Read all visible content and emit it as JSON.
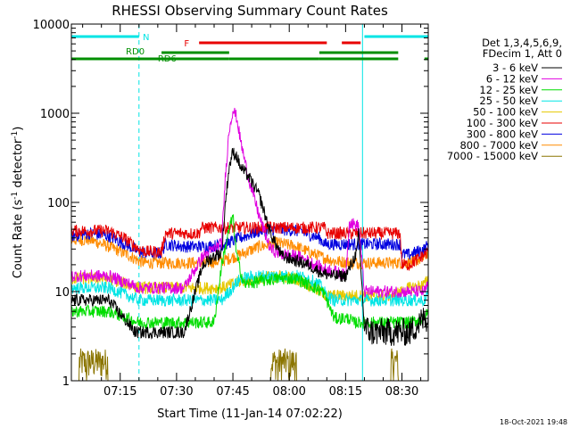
{
  "chart_data": {
    "type": "line",
    "title": "RHESSI Observing Summary Count Rates",
    "xlabel": "Start Time (11-Jan-14 07:02:22)",
    "ylabel": "Count Rate (s⁻¹ detector⁻¹)",
    "ylabel_main": "Count Rate (s",
    "ylabel_sup1": "-1",
    "ylabel_mid": " detector",
    "ylabel_sup2": "-1",
    "ylabel_end": ")",
    "yscale": "log",
    "ylim": [
      1,
      10000
    ],
    "xlim_minutes": [
      0,
      95
    ],
    "xtick_minutes": [
      13,
      28,
      43,
      58,
      73,
      88
    ],
    "xticks": [
      "07:15",
      "07:30",
      "07:45",
      "08:00",
      "08:15",
      "08:30"
    ],
    "ytick_values": [
      1,
      10,
      100,
      1000,
      10000
    ],
    "yticks": [
      "1",
      "10",
      "100",
      "1000",
      "10000"
    ],
    "legend_header": [
      "Det 1,3,4,5,6,9,",
      "FDecim 1, Att 0"
    ],
    "legend_position": "right",
    "footer": "18-Oct-2021 19:48",
    "flags": [
      {
        "label": "N",
        "color": "#00e5e5",
        "row": 1,
        "segments": [
          [
            0,
            18
          ],
          [
            78,
            95
          ]
        ]
      },
      {
        "label": "F",
        "color": "#e80000",
        "row": 2,
        "segments": [
          [
            34,
            68
          ],
          [
            72,
            77
          ]
        ]
      },
      {
        "label": "RD0",
        "color": "#008f00",
        "row": 3,
        "segments": [
          [
            24,
            42
          ],
          [
            66,
            87
          ]
        ]
      },
      {
        "label": "RD6",
        "color": "#008f00",
        "row": 4,
        "segments": [
          [
            0,
            42
          ],
          [
            42,
            66
          ],
          [
            66,
            87
          ],
          [
            94,
            95
          ]
        ]
      }
    ],
    "vlines": [
      {
        "x": 0,
        "style": "solid",
        "color": "#00e5e5"
      },
      {
        "x": 18,
        "style": "dashed",
        "color": "#00e5e5"
      },
      {
        "x": 77.5,
        "style": "solid",
        "color": "#00e5e5"
      },
      {
        "x": 95,
        "style": "dashed",
        "color": "#00e5e5"
      }
    ],
    "series": [
      {
        "name": "3 - 6 keV",
        "color": "#000000",
        "x": [
          0,
          10,
          17,
          20,
          30,
          35,
          38,
          40,
          41,
          42,
          43,
          44,
          45,
          47,
          50,
          53,
          56,
          60,
          63,
          67,
          70,
          73,
          74,
          76,
          76.5,
          78,
          80,
          85,
          90,
          94,
          95
        ],
        "y": [
          8,
          8,
          3.5,
          3.5,
          3.5,
          20,
          25,
          27,
          100,
          250,
          370,
          330,
          250,
          200,
          120,
          45,
          25,
          22,
          20,
          16,
          15,
          15,
          18,
          28,
          45,
          4,
          3.5,
          3.5,
          3.5,
          5,
          5
        ]
      },
      {
        "name": "6 - 12 keV",
        "color": "#e000e0",
        "x": [
          0,
          10,
          18,
          20,
          30,
          35,
          38,
          40,
          41,
          42,
          43,
          44,
          45,
          47,
          50,
          53,
          56,
          60,
          63,
          67,
          70,
          73,
          74,
          76,
          76.5,
          78,
          80,
          85,
          90,
          94,
          95
        ],
        "y": [
          15,
          15,
          11,
          11,
          11,
          25,
          30,
          35,
          200,
          650,
          1100,
          900,
          500,
          200,
          70,
          30,
          26,
          25,
          22,
          18,
          17,
          15,
          60,
          55,
          55,
          10,
          10,
          10,
          10,
          10,
          12
        ]
      },
      {
        "name": "12 - 25 keV",
        "color": "#00dd00",
        "x": [
          0,
          10,
          15,
          18,
          20,
          30,
          35,
          38,
          40,
          42,
          43,
          44,
          46,
          50,
          55,
          60,
          63,
          67,
          70,
          74,
          75,
          80,
          85,
          90,
          94,
          95
        ],
        "y": [
          6,
          6,
          5,
          4.5,
          4.5,
          4.5,
          4.5,
          4.5,
          20,
          50,
          70,
          25,
          12,
          13,
          14,
          14,
          12,
          10,
          5,
          5,
          4.5,
          4.5,
          4.5,
          4.5,
          5,
          6
        ]
      },
      {
        "name": "25 - 50 keV",
        "color": "#00e5e5",
        "x": [
          0,
          10,
          18,
          20,
          30,
          35,
          40,
          42,
          45,
          50,
          55,
          60,
          63,
          66,
          68,
          70,
          75,
          80,
          85,
          90,
          94,
          95
        ],
        "y": [
          11,
          11,
          8,
          8,
          8,
          8,
          8,
          10,
          14,
          15,
          15,
          15,
          14,
          12,
          9,
          8,
          8,
          8,
          8,
          8,
          8,
          10
        ]
      },
      {
        "name": "50 - 100 keV",
        "color": "#e6c800",
        "x": [
          0,
          10,
          18,
          20,
          30,
          35,
          40,
          45,
          50,
          55,
          60,
          63,
          66,
          68,
          70,
          75,
          80,
          85,
          88,
          90,
          94,
          95
        ],
        "y": [
          14,
          14,
          11,
          11,
          11,
          11,
          11,
          13,
          14,
          15,
          14,
          12,
          10,
          9,
          9,
          9,
          9,
          9,
          10,
          11,
          12,
          14
        ]
      },
      {
        "name": "100 - 300 keV",
        "color": "#e80000",
        "x": [
          0,
          2,
          5,
          8,
          10,
          14,
          18,
          20,
          22,
          24,
          25,
          30,
          34,
          34.5,
          40,
          44,
          47,
          50,
          55,
          60,
          63,
          66,
          67.5,
          68,
          72,
          76,
          78,
          80,
          85,
          87.5,
          88,
          90,
          94,
          95
        ],
        "y": [
          48,
          48,
          48,
          48,
          48,
          40,
          30,
          28,
          28,
          28,
          45,
          45,
          45,
          52,
          52,
          52,
          52,
          52,
          52,
          52,
          52,
          52,
          52,
          45,
          45,
          45,
          45,
          45,
          45,
          45,
          20,
          20,
          26,
          28
        ]
      },
      {
        "name": "300 - 800 keV",
        "color": "#0000e0",
        "x": [
          0,
          5,
          10,
          15,
          18,
          20,
          24,
          25,
          30,
          35,
          40,
          45,
          50,
          55,
          60,
          63,
          66,
          67.5,
          68,
          72,
          76,
          80,
          85,
          87.5,
          88,
          90,
          94,
          95
        ],
        "y": [
          42,
          45,
          42,
          33,
          28,
          27,
          27,
          34,
          32,
          32,
          33,
          40,
          48,
          50,
          48,
          44,
          40,
          34,
          34,
          34,
          34,
          34,
          34,
          34,
          26,
          26,
          30,
          34
        ]
      },
      {
        "name": "800 - 7000 keV",
        "color": "#ff8c00",
        "x": [
          0,
          5,
          10,
          15,
          18,
          20,
          25,
          30,
          35,
          40,
          45,
          50,
          55,
          60,
          63,
          66,
          70,
          75,
          80,
          85,
          90,
          94,
          95
        ],
        "y": [
          38,
          38,
          32,
          26,
          22,
          21,
          21,
          21,
          21,
          22,
          26,
          32,
          35,
          32,
          28,
          25,
          22,
          21,
          21,
          21,
          21,
          24,
          28
        ]
      },
      {
        "name": "7000 - 15000 keV",
        "color": "#8b7500",
        "x": [
          0,
          2,
          3,
          4,
          5,
          5.5,
          6,
          10,
          17,
          18,
          53,
          54,
          55,
          56,
          57,
          58,
          59,
          60,
          85,
          86,
          87,
          88,
          95
        ],
        "y": [
          1,
          1,
          2,
          1,
          2,
          1,
          2,
          1,
          1,
          1,
          1,
          2,
          1,
          2,
          2,
          1,
          2,
          1,
          1,
          2,
          1,
          1,
          1
        ]
      }
    ]
  }
}
